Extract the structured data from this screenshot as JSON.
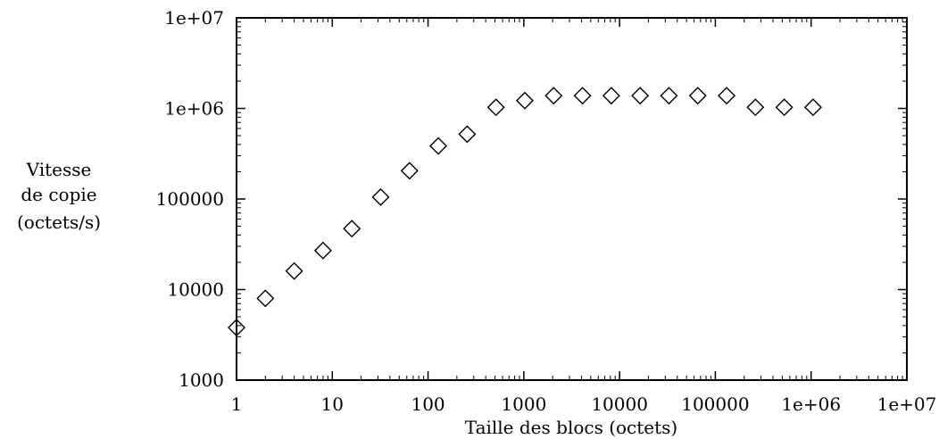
{
  "chart_data": {
    "type": "scatter",
    "x_scale": "log",
    "y_scale": "log",
    "xlim": [
      1,
      10000000
    ],
    "ylim": [
      1000,
      10000000
    ],
    "grid": false,
    "legend": "none",
    "marker": "diamond-open",
    "xlabel": "Taille des blocs (octets)",
    "ylabel": [
      "Vitesse",
      "de copie",
      "(octets/s)"
    ],
    "x_ticks": [
      {
        "value": 1,
        "label": "1"
      },
      {
        "value": 10,
        "label": "10"
      },
      {
        "value": 100,
        "label": "100"
      },
      {
        "value": 1000,
        "label": "1000"
      },
      {
        "value": 10000,
        "label": "10000"
      },
      {
        "value": 100000,
        "label": "100000"
      },
      {
        "value": 1000000,
        "label": "1e+06"
      },
      {
        "value": 10000000,
        "label": "1e+07"
      }
    ],
    "y_ticks": [
      {
        "value": 1000,
        "label": "1000"
      },
      {
        "value": 10000,
        "label": "10000"
      },
      {
        "value": 100000,
        "label": "100000"
      },
      {
        "value": 1000000,
        "label": "1e+06"
      },
      {
        "value": 10000000,
        "label": "1e+07"
      }
    ],
    "points": [
      {
        "x": 1,
        "y": 3800
      },
      {
        "x": 2,
        "y": 8000
      },
      {
        "x": 4,
        "y": 16000
      },
      {
        "x": 8,
        "y": 27000
      },
      {
        "x": 16,
        "y": 47000
      },
      {
        "x": 32,
        "y": 105000
      },
      {
        "x": 64,
        "y": 205000
      },
      {
        "x": 128,
        "y": 385000
      },
      {
        "x": 256,
        "y": 520000
      },
      {
        "x": 512,
        "y": 1030000
      },
      {
        "x": 1024,
        "y": 1220000
      },
      {
        "x": 2048,
        "y": 1380000
      },
      {
        "x": 4096,
        "y": 1380000
      },
      {
        "x": 8192,
        "y": 1380000
      },
      {
        "x": 16384,
        "y": 1380000
      },
      {
        "x": 32768,
        "y": 1380000
      },
      {
        "x": 65536,
        "y": 1380000
      },
      {
        "x": 131072,
        "y": 1380000
      },
      {
        "x": 262144,
        "y": 1030000
      },
      {
        "x": 524288,
        "y": 1030000
      },
      {
        "x": 1048576,
        "y": 1030000
      }
    ]
  }
}
